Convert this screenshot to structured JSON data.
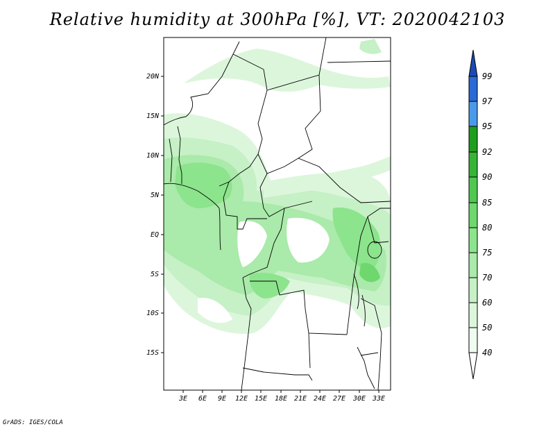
{
  "title": "Relative humidity at 300hPa [%], VT: 2020042103",
  "credit": "GrADS: IGES/COLA",
  "map": {
    "variable": "Relative humidity",
    "level": "300hPa",
    "units": "%",
    "valid_time": "2020042103",
    "lon_labels": [
      "3E",
      "6E",
      "9E",
      "12E",
      "15E",
      "18E",
      "21E",
      "24E",
      "27E",
      "30E",
      "33E"
    ],
    "lat_labels": [
      "20N",
      "15N",
      "10N",
      "5N",
      "EQ",
      "5S",
      "10S",
      "15S"
    ]
  },
  "colorbar": {
    "levels": [
      "40",
      "50",
      "60",
      "70",
      "75",
      "80",
      "85",
      "90",
      "92",
      "95",
      "97",
      "99"
    ],
    "colors": [
      "#f0fcf0",
      "#dcf6dc",
      "#c6f0c6",
      "#aaeaaa",
      "#8ce48c",
      "#6ed86e",
      "#50c850",
      "#36b436",
      "#1e9e1e",
      "#0a8a0a",
      "#4a9aea",
      "#2a6ad6",
      "#1a4ab6"
    ]
  }
}
